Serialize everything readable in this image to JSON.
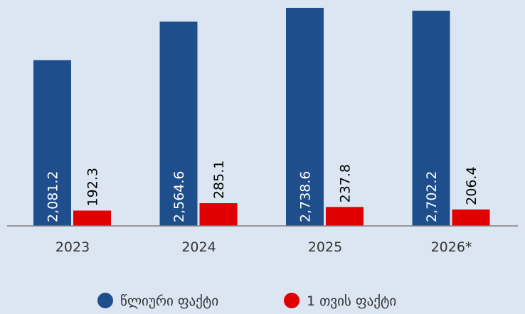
{
  "chart_data": {
    "type": "bar",
    "categories": [
      "2023",
      "2024",
      "2025",
      "2026*"
    ],
    "series": [
      {
        "name": "წლიური ფაქტი",
        "color": "#1f4e8c",
        "values": [
          2081.2,
          2564.6,
          2738.6,
          2702.2
        ],
        "value_labels": [
          "2,081.2",
          "2,564.6",
          "2,738.6",
          "2,702.2"
        ]
      },
      {
        "name": "1 თვის ფაქტი",
        "color": "#e00000",
        "values": [
          192.3,
          285.1,
          237.8,
          206.4
        ],
        "value_labels": [
          "192.3",
          "285.1",
          "237.8",
          "206.4"
        ]
      }
    ]
  }
}
